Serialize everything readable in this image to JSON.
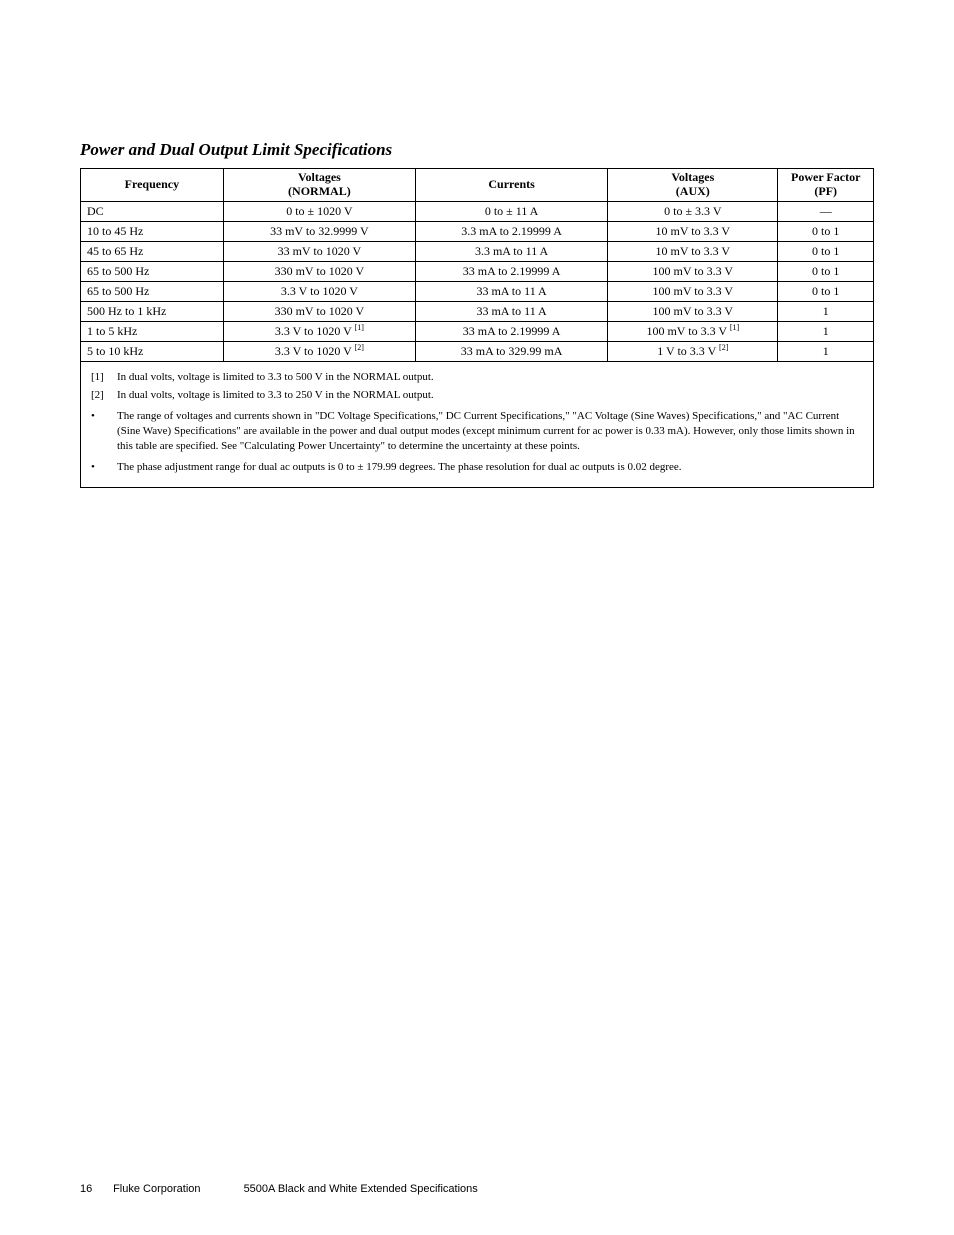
{
  "title": "Power and Dual Output Limit Specifications",
  "table": {
    "headers": {
      "frequency": "Frequency",
      "voltages_normal_l1": "Voltages",
      "voltages_normal_l2": "(NORMAL)",
      "currents": "Currents",
      "voltages_aux_l1": "Voltages",
      "voltages_aux_l2": "(AUX)",
      "pf_l1": "Power Factor",
      "pf_l2": "(PF)"
    },
    "rows": [
      {
        "freq": "DC",
        "vnorm": "0 to ± 1020 V",
        "vnorm_sup": "",
        "curr": "0 to ± 11 A",
        "vaux": "0 to ± 3.3 V",
        "vaux_sup": "",
        "pf": "—"
      },
      {
        "freq": "10 to 45 Hz",
        "vnorm": "33 mV to 32.9999 V",
        "vnorm_sup": "",
        "curr": "3.3 mA to 2.19999 A",
        "vaux": "10 mV to 3.3 V",
        "vaux_sup": "",
        "pf": "0 to 1"
      },
      {
        "freq": "45 to 65 Hz",
        "vnorm": "33 mV to 1020 V",
        "vnorm_sup": "",
        "curr": "3.3 mA to 11 A",
        "vaux": "10 mV to 3.3 V",
        "vaux_sup": "",
        "pf": "0 to 1"
      },
      {
        "freq": "65 to 500 Hz",
        "vnorm": "330 mV to 1020 V",
        "vnorm_sup": "",
        "curr": "33 mA to 2.19999 A",
        "vaux": "100 mV to 3.3 V",
        "vaux_sup": "",
        "pf": "0 to 1"
      },
      {
        "freq": "65 to 500 Hz",
        "vnorm": "3.3 V to 1020 V",
        "vnorm_sup": "",
        "curr": "33 mA to 11 A",
        "vaux": "100 mV to 3.3 V",
        "vaux_sup": "",
        "pf": "0 to 1"
      },
      {
        "freq": "500 Hz to 1 kHz",
        "vnorm": "330 mV to 1020 V",
        "vnorm_sup": "",
        "curr": "33 mA to 11 A",
        "vaux": "100 mV to 3.3 V",
        "vaux_sup": "",
        "pf": "1"
      },
      {
        "freq": "1 to 5 kHz",
        "vnorm": "3.3 V to 1020 V ",
        "vnorm_sup": "[1]",
        "curr": "33 mA to 2.19999 A",
        "vaux": "100 mV to 3.3 V ",
        "vaux_sup": "[1]",
        "pf": "1"
      },
      {
        "freq": "5 to 10 kHz",
        "vnorm": "3.3 V to 1020 V ",
        "vnorm_sup": "[2]",
        "curr": "33 mA to 329.99 mA",
        "vaux": "1 V to 3.3 V ",
        "vaux_sup": "[2]",
        "pf": "1"
      }
    ]
  },
  "notes": {
    "n1_tag": "[1]",
    "n1": "In dual volts, voltage is limited to 3.3 to 500 V in the NORMAL output.",
    "n2_tag": "[2]",
    "n2": "In dual volts, voltage is limited to 3.3 to 250 V in the NORMAL output.",
    "b1": "The range of voltages and currents shown in \"DC Voltage Specifications,\" DC Current Specifications,\" \"AC Voltage (Sine Waves) Specifications,\" and \"AC Current (Sine Wave) Specifications\" are available in the power and dual output modes (except minimum current for ac power is 0.33 mA). However, only those limits shown in this table are specified. See \"Calculating Power Uncertainty\" to determine the uncertainty at these points.",
    "b2": "The phase adjustment range for dual ac outputs is 0 to ± 179.99 degrees. The phase resolution for dual ac outputs is 0.02 degree."
  },
  "footer": {
    "page": "16",
    "corp": "Fluke Corporation",
    "doc": "5500A Black and White Extended Specifications"
  }
}
